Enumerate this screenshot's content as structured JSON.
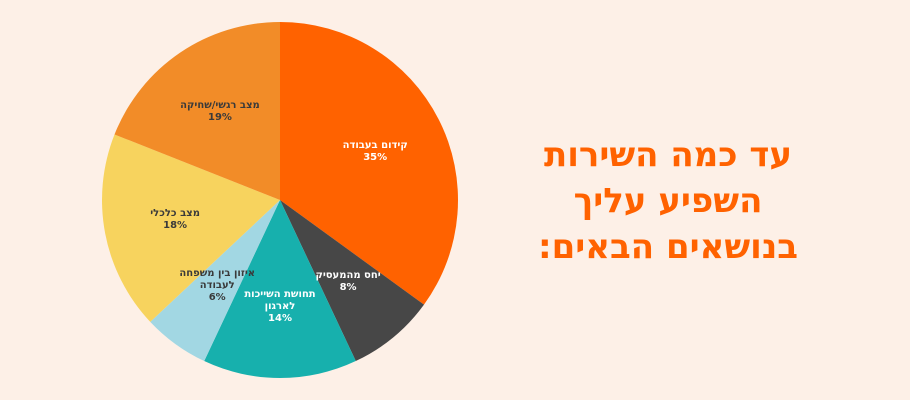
{
  "chart_data": {
    "type": "pie",
    "title": [
      "עד כמה השירות",
      "השפיע עליך",
      "בנושאים הבאים:"
    ],
    "categories": [
      "קידום בעבודה",
      "יחס מהמעסיק",
      "תחושת השייכות לארגון",
      "איזון בין משפחה לעבודה",
      "מצב כלכלי",
      "מצב רגשי/שחיקה"
    ],
    "values": [
      35,
      8,
      14,
      6,
      18,
      19
    ],
    "value_labels": [
      "35%",
      "8%",
      "14%",
      "6%",
      "18%",
      "19%"
    ],
    "colors": [
      "#ff6200",
      "#474747",
      "#17b0ad",
      "#a2d7e3",
      "#f7d35e",
      "#f28c28"
    ]
  }
}
